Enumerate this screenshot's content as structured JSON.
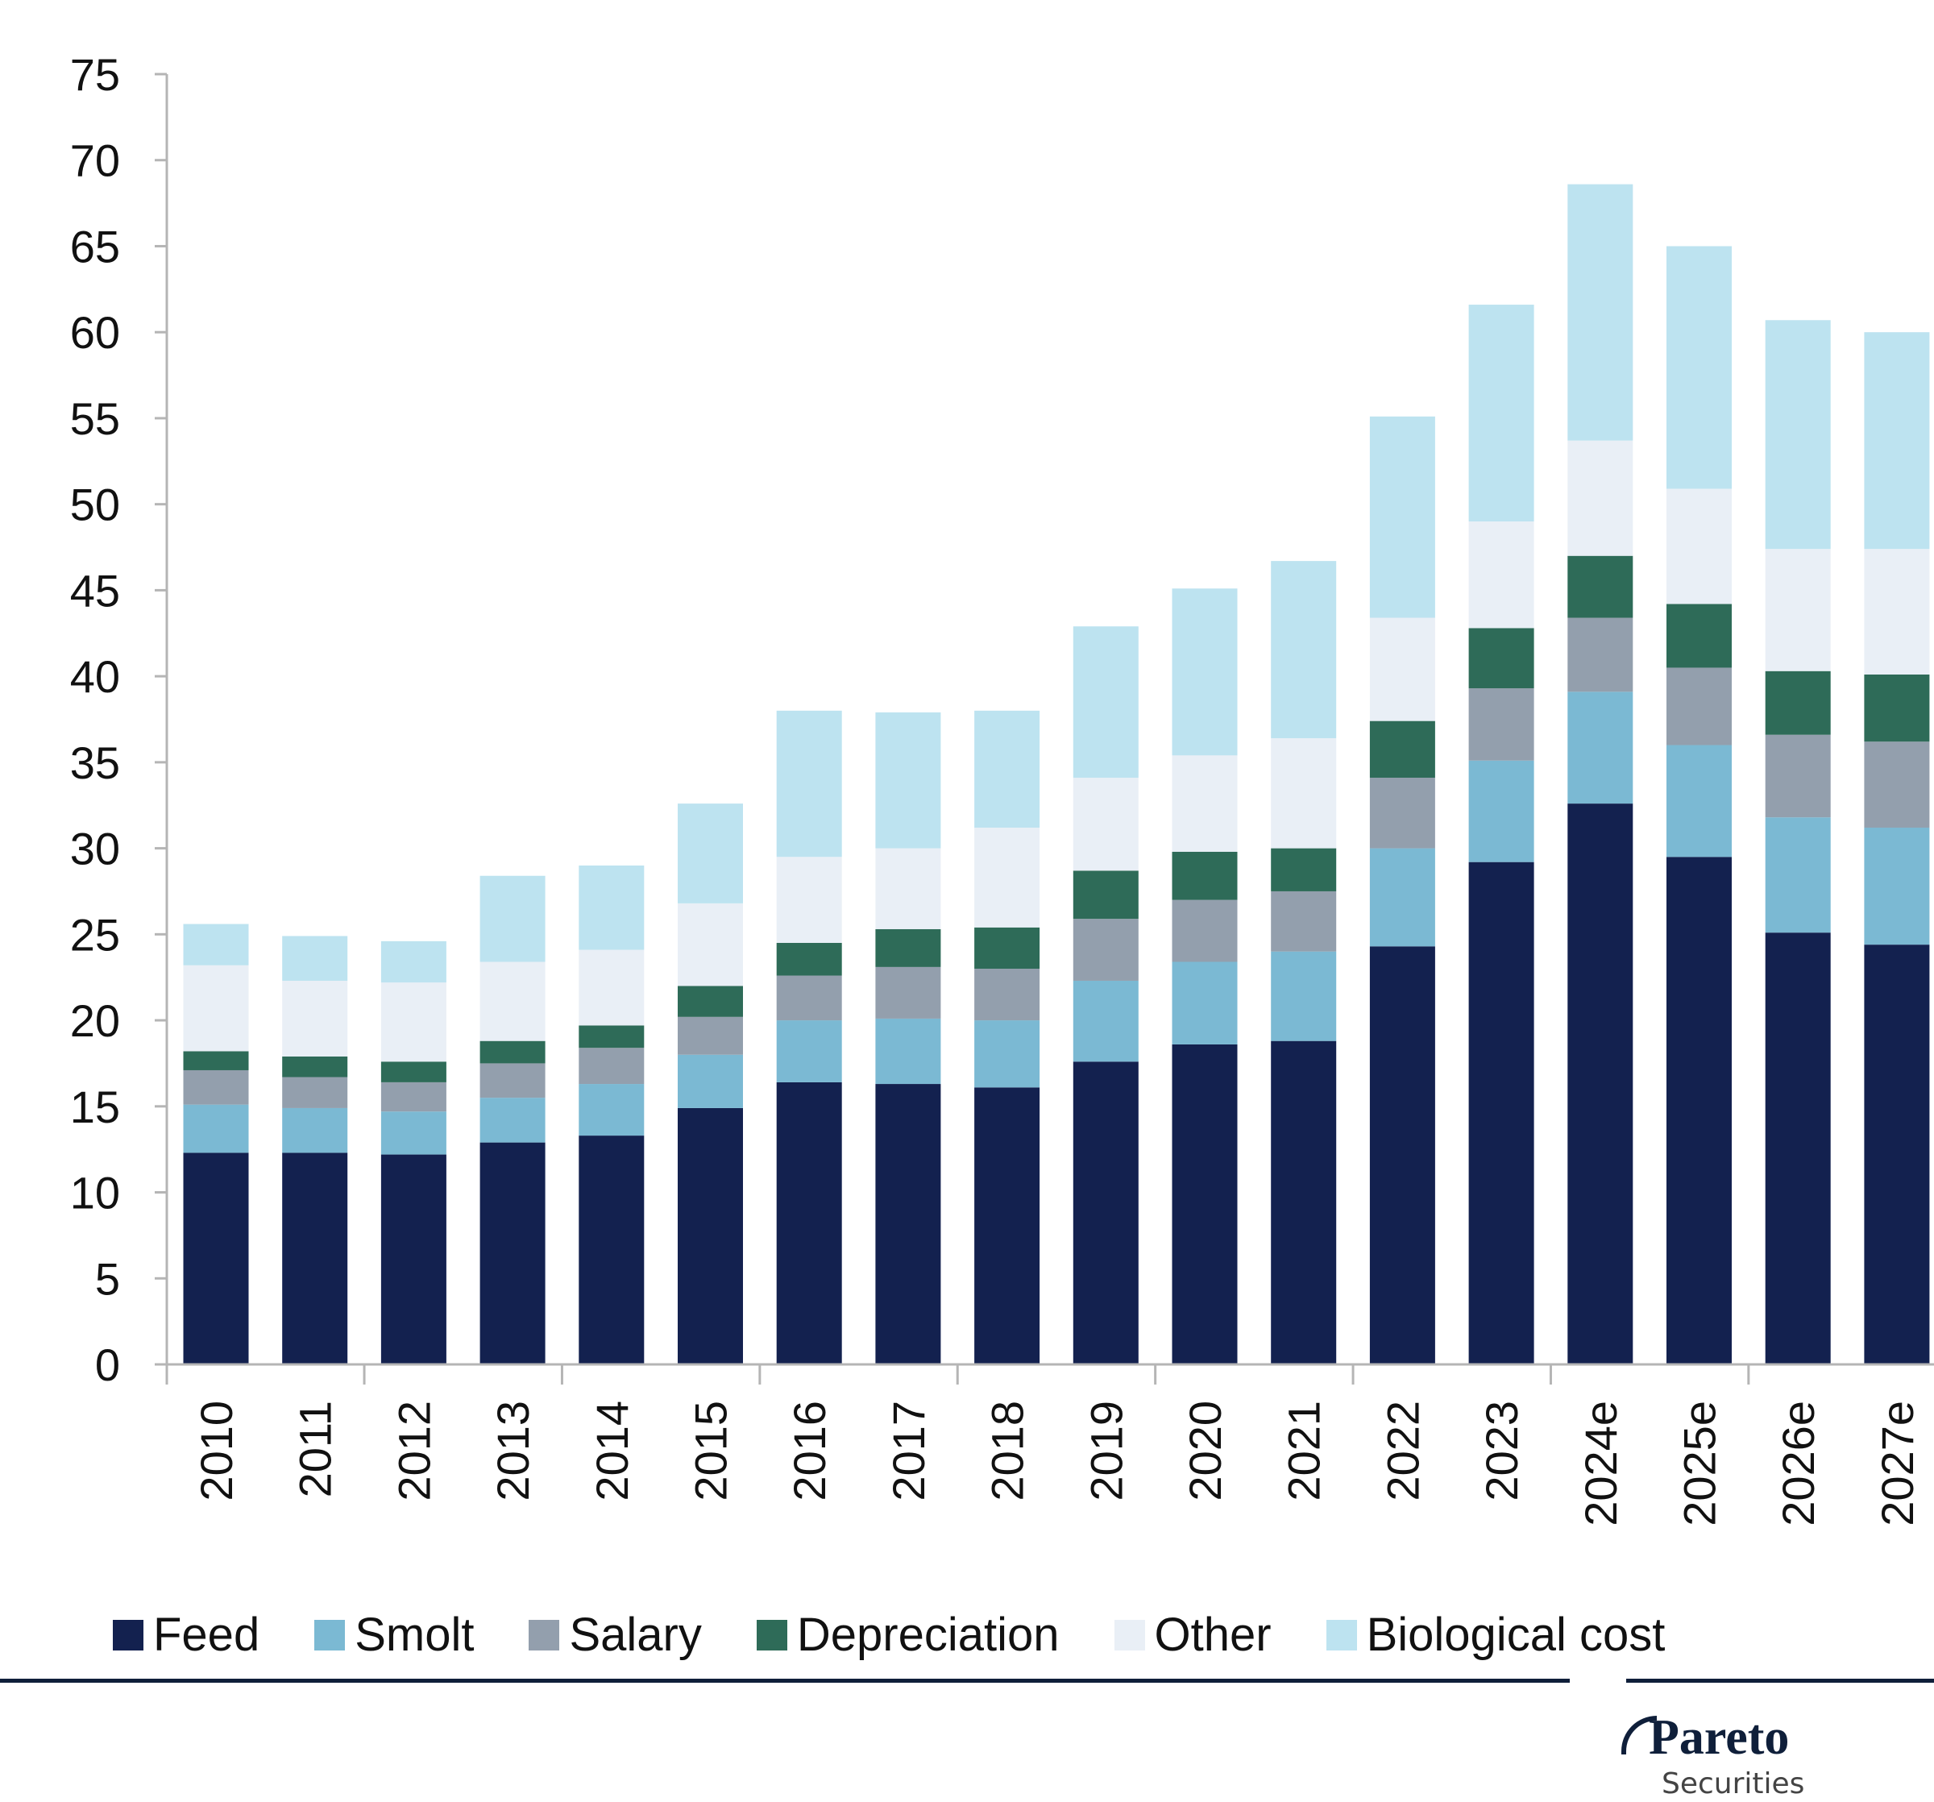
{
  "chart_data": {
    "type": "bar",
    "stacked": true,
    "title": "",
    "xlabel": "",
    "ylabel": "",
    "ylim": [
      0,
      75
    ],
    "yticks": [
      0,
      5,
      10,
      15,
      20,
      25,
      30,
      35,
      40,
      45,
      50,
      55,
      60,
      65,
      70,
      75
    ],
    "grid": false,
    "legend_position": "bottom",
    "categories": [
      "2010",
      "2011",
      "2012",
      "2013",
      "2014",
      "2015",
      "2016",
      "2017",
      "2018",
      "2019",
      "2020",
      "2021",
      "2022",
      "2023",
      "2024e",
      "2025e",
      "2026e",
      "2027e"
    ],
    "series": [
      {
        "name": "Feed",
        "color": "#13214f",
        "values": [
          12.3,
          12.3,
          12.2,
          12.9,
          13.3,
          14.9,
          16.4,
          16.3,
          16.1,
          17.6,
          18.6,
          18.8,
          24.3,
          29.2,
          32.6,
          29.5,
          25.1,
          24.4
        ]
      },
      {
        "name": "Smolt",
        "color": "#7bb9d3",
        "values": [
          2.8,
          2.6,
          2.5,
          2.6,
          3.0,
          3.1,
          3.6,
          3.8,
          3.9,
          4.7,
          4.8,
          5.2,
          5.7,
          5.9,
          6.5,
          6.5,
          6.7,
          6.8
        ]
      },
      {
        "name": "Salary",
        "color": "#939fad",
        "values": [
          2.0,
          1.8,
          1.7,
          2.0,
          2.1,
          2.2,
          2.6,
          3.0,
          3.0,
          3.6,
          3.6,
          3.5,
          4.1,
          4.2,
          4.3,
          4.5,
          4.8,
          5.0
        ]
      },
      {
        "name": "Depreciation",
        "color": "#2e6b58",
        "values": [
          1.1,
          1.2,
          1.2,
          1.3,
          1.3,
          1.8,
          1.9,
          2.2,
          2.4,
          2.8,
          2.8,
          2.5,
          3.3,
          3.5,
          3.6,
          3.7,
          3.7,
          3.9
        ]
      },
      {
        "name": "Other",
        "color": "#e9eff6",
        "values": [
          5.0,
          4.4,
          4.6,
          4.6,
          4.4,
          4.8,
          5.0,
          4.7,
          5.8,
          5.4,
          5.6,
          6.4,
          6.0,
          6.2,
          6.7,
          6.7,
          7.1,
          7.3
        ]
      },
      {
        "name": "Biological cost",
        "color": "#bde3f0",
        "values": [
          2.4,
          2.6,
          2.4,
          5.0,
          4.9,
          5.8,
          8.5,
          7.9,
          6.8,
          8.8,
          9.7,
          10.3,
          11.7,
          12.6,
          14.9,
          14.1,
          13.3,
          12.6
        ]
      }
    ],
    "totals": [
      25.6,
      24.9,
      24.6,
      28.4,
      29.0,
      32.6,
      38.0,
      37.9,
      38.0,
      42.9,
      45.1,
      46.7,
      55.1,
      61.6,
      68.6,
      65.0,
      60.7,
      60.0
    ]
  },
  "legend": {
    "items": [
      {
        "label": "Feed",
        "color": "#13214f"
      },
      {
        "label": "Smolt",
        "color": "#7bb9d3"
      },
      {
        "label": "Salary",
        "color": "#939fad"
      },
      {
        "label": "Depreciation",
        "color": "#2e6b58"
      },
      {
        "label": "Other",
        "color": "#e9eff6"
      },
      {
        "label": "Biological cost",
        "color": "#bde3f0"
      }
    ]
  },
  "logo": {
    "name": "Pareto",
    "subtitle": "Securities"
  }
}
